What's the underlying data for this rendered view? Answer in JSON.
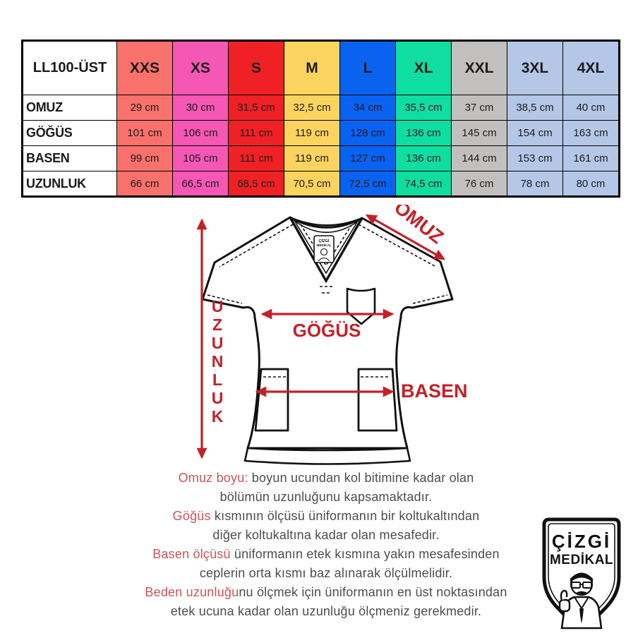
{
  "table": {
    "corner_label": "LL100-ÜST",
    "columns": [
      {
        "label": "XXS",
        "color": "#F8716C"
      },
      {
        "label": "XS",
        "color": "#F557B5"
      },
      {
        "label": "S",
        "color": "#EF2125"
      },
      {
        "label": "M",
        "color": "#FBD45F"
      },
      {
        "label": "L",
        "color": "#0A62F1"
      },
      {
        "label": "XL",
        "color": "#0FDDA1"
      },
      {
        "label": "XXL",
        "color": "#C1C0BE"
      },
      {
        "label": "3XL",
        "color": "#B4C7E7"
      },
      {
        "label": "4XL",
        "color": "#B4C7E7"
      }
    ],
    "rows": [
      {
        "label": "OMUZ",
        "values": [
          "29 cm",
          "30 cm",
          "31,5 cm",
          "32,5 cm",
          "34 cm",
          "35,5 cm",
          "37 cm",
          "38,5 cm",
          "40 cm"
        ]
      },
      {
        "label": "GÖĞÜS",
        "values": [
          "101 cm",
          "106 cm",
          "111 cm",
          "119 cm",
          "128 cm",
          "136 cm",
          "145 cm",
          "154 cm",
          "163 cm"
        ]
      },
      {
        "label": "BASEN",
        "values": [
          "99 cm",
          "105 cm",
          "111 cm",
          "119 cm",
          "127 cm",
          "136 cm",
          "144 cm",
          "153 cm",
          "161 cm"
        ]
      },
      {
        "label": "UZUNLUK",
        "values": [
          "66 cm",
          "66,5 cm",
          "68,5 cm",
          "70,5 cm",
          "72,5 cm",
          "74,5 cm",
          "76 cm",
          "78 cm",
          "80 cm"
        ]
      }
    ]
  },
  "diagram": {
    "labels": {
      "uzunluk": "UZUNLUK",
      "omuz": "OMUZ",
      "gogus": "GÖĞÜS",
      "basen": "BASEN"
    },
    "neck_label": {
      "line1": "ÇİZGİ",
      "line2": "MEDİKAL"
    }
  },
  "descriptions": [
    {
      "lead": "Omuz boyu:",
      "lead_rest": " boyun ucundan kol bitimine kadar olan",
      "line2": "bölümün uzunluğunu kapsamaktadır."
    },
    {
      "lead": "Göğüs",
      "lead_rest": " kısmının ölçüsü üniformanın bir koltukaltından",
      "line2": "diğer koltukaltına kadar olan mesafedir."
    },
    {
      "lead": "Basen ölçüsü",
      "lead_rest": " üniformanın etek kısmına yakın mesafesinden",
      "line2": "ceplerin orta kısmı baz alınarak ölçülmelidir."
    },
    {
      "lead": "Beden uzunluğu",
      "lead_rest": "nu ölçmek için üniformanın en üst noktasından",
      "line2": "etek ucuna kadar olan uzunluğu ölçmeniz gerekmedir."
    }
  ],
  "logo": {
    "line1": "ÇİZGİ",
    "line2": "MEDİKAL"
  },
  "colors": {
    "annotation_red": "#C42127",
    "desc_lead_red": "#C9545B",
    "desc_text": "#4D4D4D",
    "table_border": "#000000",
    "line_black": "#111111"
  }
}
